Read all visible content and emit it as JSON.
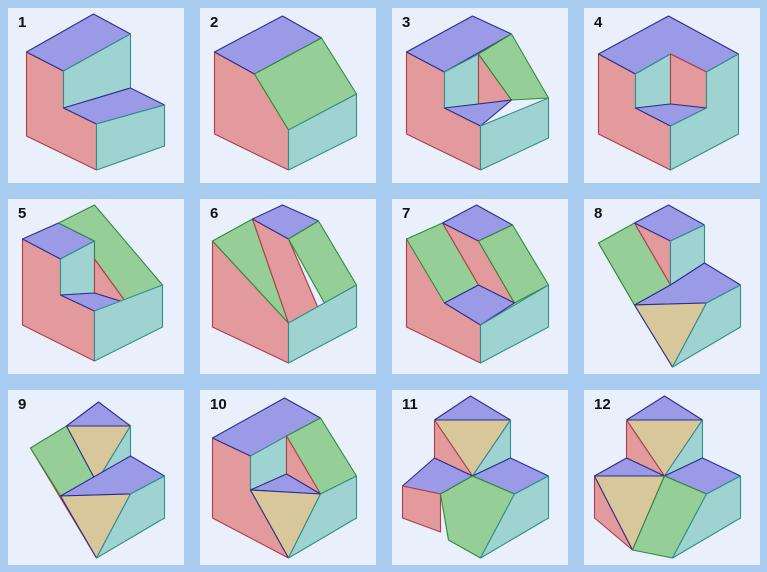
{
  "colors": {
    "background": "#a9cdf0",
    "cell_bg": "#e9f0fb",
    "top": "#9a9ae6",
    "left": "#e29a9c",
    "right": "#9fd3d1",
    "slant": "#95cf97",
    "triangle": "#d8c79b",
    "edge": "#3a3f5c"
  },
  "figures": [
    {
      "label": "1"
    },
    {
      "label": "2"
    },
    {
      "label": "3"
    },
    {
      "label": "4"
    },
    {
      "label": "5"
    },
    {
      "label": "6"
    },
    {
      "label": "7"
    },
    {
      "label": "8"
    },
    {
      "label": "9"
    },
    {
      "label": "10"
    },
    {
      "label": "11"
    },
    {
      "label": "12"
    }
  ]
}
